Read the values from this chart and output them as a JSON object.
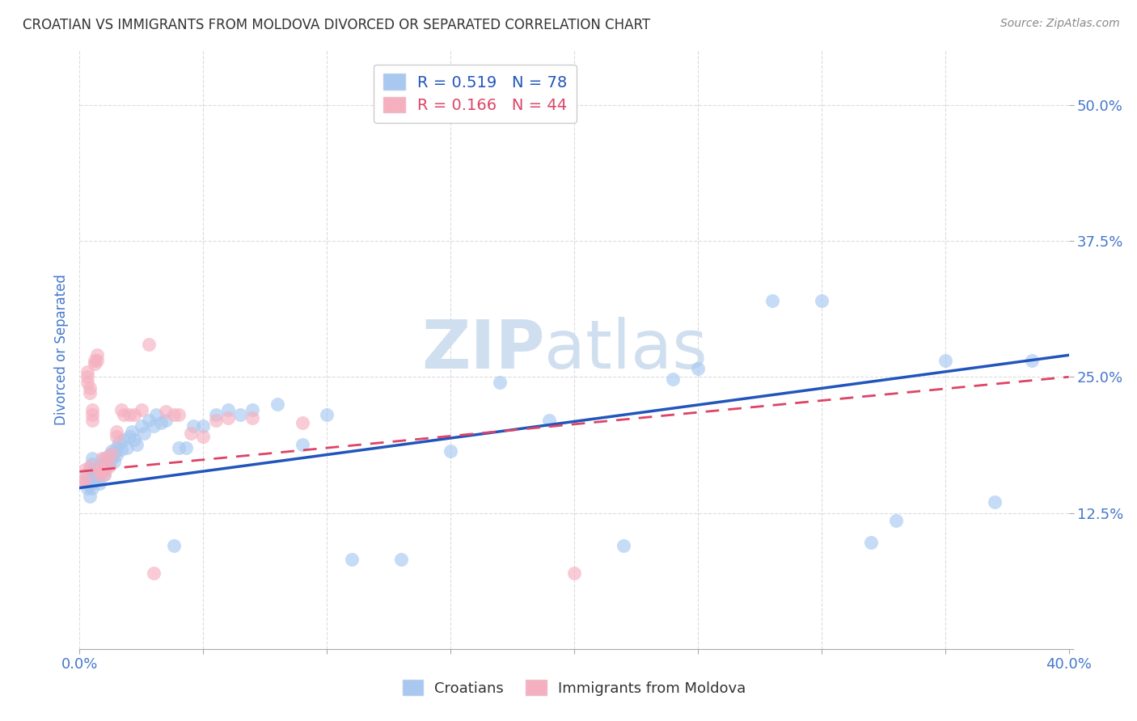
{
  "title": "CROATIAN VS IMMIGRANTS FROM MOLDOVA DIVORCED OR SEPARATED CORRELATION CHART",
  "source": "Source: ZipAtlas.com",
  "ylabel": "Divorced or Separated",
  "xlim": [
    0.0,
    0.4
  ],
  "ylim": [
    0.0,
    0.55
  ],
  "xticks": [
    0.0,
    0.05,
    0.1,
    0.15,
    0.2,
    0.25,
    0.3,
    0.35,
    0.4
  ],
  "xtick_labels_bottom": [
    "0.0%",
    "",
    "",
    "",
    "",
    "",
    "",
    "",
    "40.0%"
  ],
  "yticks": [
    0.0,
    0.125,
    0.25,
    0.375,
    0.5
  ],
  "ytick_labels": [
    "",
    "12.5%",
    "25.0%",
    "37.5%",
    "50.0%"
  ],
  "legend_labels": [
    "Croatians",
    "Immigrants from Moldova"
  ],
  "R_blue": 0.519,
  "N_blue": 78,
  "R_pink": 0.166,
  "N_pink": 44,
  "blue_color": "#a8c8f0",
  "pink_color": "#f5b0c0",
  "blue_line_color": "#2255bb",
  "pink_line_color": "#dd4466",
  "watermark_zip": "ZIP",
  "watermark_atlas": "atlas",
  "watermark_color": "#d0dff0",
  "background_color": "#ffffff",
  "grid_color": "#cccccc",
  "title_color": "#333333",
  "tick_label_color": "#4477cc",
  "blue_scatter_x": [
    0.002,
    0.003,
    0.003,
    0.004,
    0.004,
    0.004,
    0.005,
    0.005,
    0.005,
    0.005,
    0.005,
    0.006,
    0.006,
    0.006,
    0.007,
    0.007,
    0.007,
    0.008,
    0.008,
    0.008,
    0.008,
    0.009,
    0.009,
    0.01,
    0.01,
    0.01,
    0.011,
    0.011,
    0.012,
    0.012,
    0.013,
    0.013,
    0.014,
    0.014,
    0.015,
    0.015,
    0.016,
    0.017,
    0.018,
    0.019,
    0.02,
    0.021,
    0.022,
    0.023,
    0.025,
    0.026,
    0.028,
    0.03,
    0.031,
    0.033,
    0.035,
    0.038,
    0.04,
    0.043,
    0.046,
    0.05,
    0.055,
    0.06,
    0.065,
    0.07,
    0.08,
    0.09,
    0.1,
    0.11,
    0.13,
    0.15,
    0.17,
    0.19,
    0.22,
    0.24,
    0.25,
    0.28,
    0.3,
    0.32,
    0.33,
    0.35,
    0.37,
    0.385
  ],
  "blue_scatter_y": [
    0.155,
    0.148,
    0.16,
    0.165,
    0.15,
    0.14,
    0.162,
    0.155,
    0.148,
    0.17,
    0.175,
    0.158,
    0.163,
    0.155,
    0.165,
    0.16,
    0.155,
    0.168,
    0.165,
    0.16,
    0.152,
    0.17,
    0.163,
    0.175,
    0.168,
    0.16,
    0.175,
    0.168,
    0.178,
    0.17,
    0.182,
    0.175,
    0.18,
    0.172,
    0.185,
    0.178,
    0.19,
    0.183,
    0.192,
    0.185,
    0.195,
    0.2,
    0.192,
    0.188,
    0.205,
    0.198,
    0.21,
    0.205,
    0.215,
    0.208,
    0.21,
    0.095,
    0.185,
    0.185,
    0.205,
    0.205,
    0.215,
    0.22,
    0.215,
    0.22,
    0.225,
    0.188,
    0.215,
    0.082,
    0.082,
    0.182,
    0.245,
    0.21,
    0.095,
    0.248,
    0.258,
    0.32,
    0.32,
    0.098,
    0.118,
    0.265,
    0.135,
    0.265
  ],
  "pink_scatter_x": [
    0.001,
    0.002,
    0.002,
    0.003,
    0.003,
    0.003,
    0.004,
    0.004,
    0.004,
    0.005,
    0.005,
    0.005,
    0.006,
    0.006,
    0.007,
    0.007,
    0.008,
    0.008,
    0.009,
    0.009,
    0.01,
    0.01,
    0.011,
    0.012,
    0.013,
    0.015,
    0.015,
    0.017,
    0.018,
    0.02,
    0.022,
    0.025,
    0.028,
    0.03,
    0.035,
    0.038,
    0.04,
    0.045,
    0.05,
    0.055,
    0.06,
    0.07,
    0.09,
    0.2
  ],
  "pink_scatter_y": [
    0.155,
    0.165,
    0.155,
    0.25,
    0.255,
    0.245,
    0.24,
    0.235,
    0.168,
    0.22,
    0.215,
    0.21,
    0.265,
    0.262,
    0.27,
    0.265,
    0.16,
    0.165,
    0.165,
    0.175,
    0.165,
    0.16,
    0.175,
    0.168,
    0.18,
    0.2,
    0.195,
    0.22,
    0.215,
    0.215,
    0.215,
    0.22,
    0.28,
    0.07,
    0.218,
    0.215,
    0.215,
    0.198,
    0.195,
    0.21,
    0.212,
    0.212,
    0.208,
    0.07
  ],
  "blue_trendline_x": [
    0.0,
    0.4
  ],
  "blue_trendline_y": [
    0.148,
    0.27
  ],
  "pink_trendline_x": [
    0.0,
    0.4
  ],
  "pink_trendline_y": [
    0.163,
    0.25
  ]
}
